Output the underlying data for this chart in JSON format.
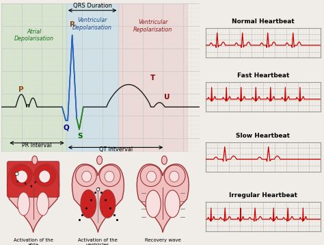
{
  "bg_color": "#f0ede8",
  "grid_main_color": "#c8c8c8",
  "grid_minor_color": "#e0ddd8",
  "ecg_line_color": "#1a1a1a",
  "ecg_red_color": "#cc0000",
  "atrial_bg": "#b8dcb0",
  "ventricular_dep_bg": "#a8d4e8",
  "ventricular_rep_bg": "#e8b8b8",
  "heart_outer": "#f0c0c0",
  "heart_inner": "#f8e0e0",
  "heart_red": "#cc2222",
  "heart_border": "#993333",
  "labels": {
    "qrs": "QRS Duration",
    "r_label": "R",
    "p_label": "P",
    "q_label": "Q",
    "s_label": "S",
    "t_label": "T",
    "u_label": "U",
    "pr_interval": "PR Interval",
    "qt_interval": "QT Intverval",
    "atrial_dep": "Atrial\nDepolarisation",
    "ventricular_dep": "Ventricular\nDepolarisation",
    "ventricular_rep": "Ventricular\nRepolarisation"
  },
  "heartbeat_labels": [
    "Normal Heartbeat",
    "Fast Heartbeat",
    "Slow Heartbeat",
    "Irregular Heartbeat"
  ],
  "heart_labels": [
    "Activation of the\natria",
    "Activation of the\nventricles",
    "Recovery wave"
  ],
  "color_p": "#8B4513",
  "color_r": "#8B4513",
  "color_q": "#000080",
  "color_s": "#006400",
  "color_t": "#8B0000",
  "color_u": "#8B0000",
  "color_blue_line": "#2266cc",
  "color_green_line": "#228822"
}
